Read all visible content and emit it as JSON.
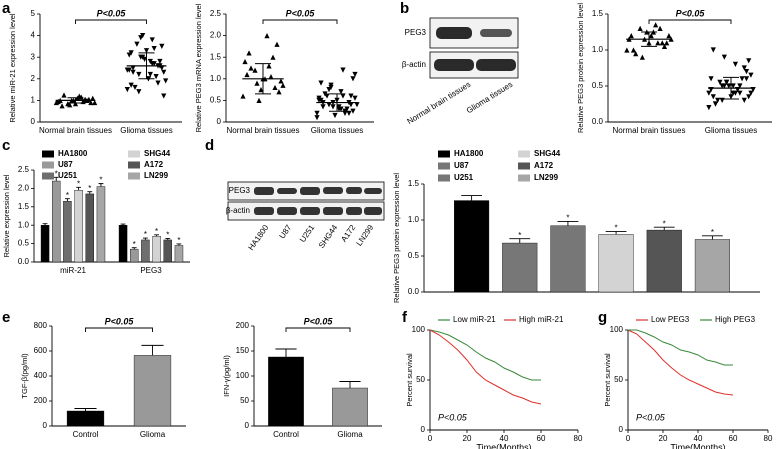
{
  "panel_letters": [
    "a",
    "b",
    "c",
    "d",
    "e",
    "f",
    "g"
  ],
  "blots": [
    {
      "rows": [
        "PEG3",
        "β-actin"
      ],
      "lanes": [
        "Normal brain tissues",
        "Glioma tissues"
      ]
    },
    {
      "rows": [
        "PEG3",
        "β-actin"
      ],
      "lanes": [
        "HA1800",
        "U87",
        "U251",
        "SHG44",
        "A172",
        "LN299"
      ]
    }
  ],
  "chart_data": [
    {
      "type": "dot",
      "y_label": "Relative miR-21 expression level",
      "annotation": "P<0.05",
      "ylim": [
        0,
        5
      ],
      "yticks": [
        0,
        1,
        2,
        3,
        4,
        5
      ],
      "groups": [
        {
          "name": "Normal brain tissues",
          "marker": "triangle",
          "mean": 1.0,
          "sd": 0.12,
          "values": [
            0.9,
            1.0,
            1.1,
            0.85,
            0.95,
            1.05,
            1.2,
            0.8,
            1.0,
            0.9,
            1.15,
            1.0,
            0.75,
            1.1,
            0.95,
            1.0,
            1.25,
            0.9,
            1.05,
            0.85
          ]
        },
        {
          "name": "Glioma tissues",
          "marker": "triangle-down",
          "mean": 2.6,
          "sd": 0.6,
          "values": [
            1.5,
            1.8,
            2.0,
            2.2,
            2.4,
            2.6,
            2.8,
            3.0,
            3.2,
            3.5,
            3.8,
            4.0,
            2.5,
            2.3,
            2.7,
            2.9,
            1.6,
            1.9,
            2.1,
            3.3,
            3.6,
            2.4,
            2.6,
            2.0,
            1.4,
            3.1,
            2.8,
            2.2,
            3.9,
            1.7,
            2.5,
            2.7,
            3.0,
            2.3,
            1.2,
            3.4
          ]
        }
      ]
    },
    {
      "type": "dot",
      "y_label": "Relative PEG3 mRNA expression level",
      "annotation": "P<0.05",
      "ylim": [
        0,
        2.5
      ],
      "yticks": [
        0,
        0.5,
        {
          "value": 1,
          "label": "1.0"
        },
        1.5,
        {
          "value": 2,
          "label": "2.0"
        },
        2.5
      ],
      "groups": [
        {
          "name": "Normal brain tissues",
          "marker": "triangle",
          "mean": 1.0,
          "sd": 0.35,
          "values": [
            0.6,
            0.8,
            1.0,
            1.2,
            1.4,
            1.8,
            2.0,
            0.9,
            1.1,
            0.7,
            1.3,
            0.5,
            1.6,
            0.95,
            1.05,
            0.75,
            1.25,
            0.85,
            1.5,
            1.0
          ]
        },
        {
          "name": "Glioma tissues",
          "marker": "triangle-down",
          "mean": 0.45,
          "sd": 0.2,
          "values": [
            0.1,
            0.2,
            0.3,
            0.4,
            0.5,
            0.6,
            0.7,
            0.8,
            0.9,
            1.0,
            1.2,
            0.35,
            0.45,
            0.55,
            0.25,
            0.15,
            0.65,
            0.4,
            0.3,
            0.5,
            0.6,
            0.2,
            0.45,
            0.35,
            0.75,
            0.55,
            0.4,
            0.3,
            0.85,
            0.5,
            0.25,
            0.6,
            0.45,
            0.35,
            1.1,
            0.2
          ]
        }
      ]
    },
    {
      "type": "dot",
      "y_label": "Relative PEG3 protein expression level",
      "annotation": "P<0.05",
      "ylim": [
        0,
        1.5
      ],
      "yticks": [
        {
          "value": 0,
          "label": "0.0"
        },
        0.5,
        {
          "value": 1,
          "label": "1.0"
        },
        1.5
      ],
      "groups": [
        {
          "name": "Normal brain tissues",
          "marker": "triangle",
          "mean": 1.15,
          "sd": 0.1,
          "values": [
            1.0,
            1.1,
            1.2,
            1.3,
            1.15,
            1.05,
            1.25,
            0.9,
            1.2,
            1.1,
            1.35,
            1.15,
            1.0,
            1.2,
            1.1,
            1.25,
            0.95,
            1.15,
            1.3,
            1.1
          ]
        },
        {
          "name": "Glioma tissues",
          "marker": "triangle-down",
          "mean": 0.47,
          "sd": 0.15,
          "values": [
            0.2,
            0.3,
            0.4,
            0.5,
            0.6,
            0.7,
            0.8,
            0.9,
            1.0,
            0.35,
            0.45,
            0.55,
            0.25,
            0.65,
            0.4,
            0.5,
            0.3,
            0.45,
            0.6,
            0.35,
            0.55,
            0.4,
            0.75,
            0.5,
            0.3,
            0.45,
            0.6,
            0.4,
            0.5,
            0.35,
            0.85,
            0.45,
            0.55,
            0.25,
            0.4,
            0.5
          ]
        }
      ]
    },
    {
      "type": "bar",
      "y_label": "Relative expression level",
      "ylim": [
        0,
        2.5
      ],
      "yticks": [
        {
          "value": 0,
          "label": "0.0"
        },
        0.5,
        {
          "value": 1,
          "label": "1.0"
        },
        1.5,
        {
          "value": 2,
          "label": "2.0"
        },
        2.5
      ],
      "categories": [
        "miR-21",
        "PEG3"
      ],
      "series": [
        {
          "name": "HA1800",
          "color": "#000000",
          "values": [
            1.0,
            1.0
          ],
          "errors": [
            0.04,
            0.03
          ]
        },
        {
          "name": "U87",
          "color": "#999999",
          "values": [
            2.2,
            0.35
          ],
          "errors": [
            0.1,
            0.04
          ],
          "labels": [
            "*",
            "*"
          ]
        },
        {
          "name": "U251",
          "color": "#6e6e6e",
          "values": [
            1.65,
            0.6
          ],
          "errors": [
            0.07,
            0.05
          ],
          "labels": [
            "*",
            "*"
          ]
        },
        {
          "name": "SHG44",
          "color": "#d3d3d3",
          "values": [
            1.95,
            0.7
          ],
          "errors": [
            0.08,
            0.04
          ],
          "labels": [
            "*",
            "*"
          ]
        },
        {
          "name": "A172",
          "color": "#555555",
          "values": [
            1.85,
            0.6
          ],
          "errors": [
            0.06,
            0.04
          ],
          "labels": [
            "*",
            "*"
          ]
        },
        {
          "name": "LN299",
          "color": "#a6a6a6",
          "values": [
            2.05,
            0.45
          ],
          "errors": [
            0.08,
            0.04
          ],
          "labels": [
            "*",
            "*"
          ]
        }
      ]
    },
    {
      "type": "bar",
      "y_label": "Relative PEG3 protein expression level",
      "ylim": [
        0,
        1.5
      ],
      "yticks": [
        {
          "value": 0,
          "label": "0.0"
        },
        0.5,
        {
          "value": 1,
          "label": "1.0"
        },
        1.5
      ],
      "series": [
        {
          "name": "HA1800",
          "color": "#000000",
          "values": [
            1.27
          ],
          "errors": [
            0.07
          ]
        },
        {
          "name": "U87",
          "color": "#777777",
          "values": [
            0.68
          ],
          "errors": [
            0.06
          ],
          "labels": [
            "*"
          ]
        },
        {
          "name": "U251",
          "color": "#777777",
          "values": [
            0.92
          ],
          "errors": [
            0.06
          ],
          "labels": [
            "*"
          ]
        },
        {
          "name": "SHG44",
          "color": "#d3d3d3",
          "values": [
            0.8
          ],
          "errors": [
            0.04
          ],
          "labels": [
            "*"
          ]
        },
        {
          "name": "A172",
          "color": "#555555",
          "values": [
            0.86
          ],
          "errors": [
            0.04
          ],
          "labels": [
            "*"
          ]
        },
        {
          "name": "LN299",
          "color": "#a6a6a6",
          "values": [
            0.73
          ],
          "errors": [
            0.05
          ],
          "labels": [
            "*"
          ]
        }
      ]
    },
    {
      "type": "bar",
      "y_label": "TGF-β(pg/ml)",
      "annotation": "P<0.05",
      "ylim": [
        0,
        800
      ],
      "yticks": [
        0,
        200,
        400,
        600,
        800
      ],
      "categories": [
        "Control",
        "Glioma"
      ],
      "series": [
        {
          "colors": [
            "#000000",
            "#999999"
          ],
          "values": [
            120,
            565
          ],
          "errors": [
            20,
            80
          ]
        }
      ]
    },
    {
      "type": "bar",
      "y_label": "IFN-γ(pg/ml)",
      "annotation": "P<0.05",
      "ylim": [
        0,
        200
      ],
      "yticks": [
        0,
        50,
        100,
        150,
        200
      ],
      "categories": [
        "Control",
        "Glioma"
      ],
      "series": [
        {
          "colors": [
            "#000000",
            "#999999"
          ],
          "values": [
            138,
            76
          ],
          "errors": [
            16,
            13
          ]
        }
      ]
    },
    {
      "type": "survival",
      "x_label": "Time(Months)",
      "y_label": "Percent survival",
      "annotation": "P<0.05",
      "xlim": [
        0,
        80
      ],
      "xticks": [
        0,
        20,
        40,
        60,
        80
      ],
      "ylim": [
        0,
        100
      ],
      "yticks": [
        0,
        50,
        100
      ],
      "series": [
        {
          "name": "Low miR-21",
          "color": "#3a8a3a",
          "x": [
            0,
            5,
            10,
            15,
            20,
            25,
            30,
            35,
            40,
            45,
            50,
            55,
            60
          ],
          "values": [
            100,
            98,
            95,
            90,
            85,
            78,
            72,
            68,
            62,
            58,
            53,
            50,
            50
          ]
        },
        {
          "name": "High miR-21",
          "color": "#e0302a",
          "x": [
            0,
            5,
            10,
            15,
            20,
            25,
            30,
            35,
            40,
            45,
            50,
            55,
            60
          ],
          "values": [
            100,
            95,
            88,
            80,
            70,
            58,
            50,
            45,
            40,
            35,
            32,
            28,
            26
          ]
        }
      ]
    },
    {
      "type": "survival",
      "x_label": "Time(Months)",
      "y_label": "Percent survival",
      "annotation": "P<0.05",
      "xlim": [
        0,
        80
      ],
      "xticks": [
        0,
        20,
        40,
        60,
        80
      ],
      "ylim": [
        0,
        100
      ],
      "yticks": [
        0,
        50,
        100
      ],
      "series": [
        {
          "name": "Low PEG3",
          "color": "#e0302a",
          "x": [
            0,
            5,
            10,
            15,
            20,
            25,
            30,
            35,
            40,
            45,
            50,
            55,
            60
          ],
          "values": [
            100,
            96,
            88,
            80,
            70,
            62,
            55,
            50,
            46,
            42,
            38,
            36,
            35
          ]
        },
        {
          "name": "High PEG3",
          "color": "#3a8a3a",
          "x": [
            0,
            5,
            10,
            15,
            20,
            25,
            30,
            35,
            40,
            45,
            50,
            55,
            60
          ],
          "values": [
            100,
            100,
            97,
            93,
            88,
            85,
            80,
            78,
            75,
            70,
            68,
            65,
            65
          ]
        }
      ]
    }
  ]
}
